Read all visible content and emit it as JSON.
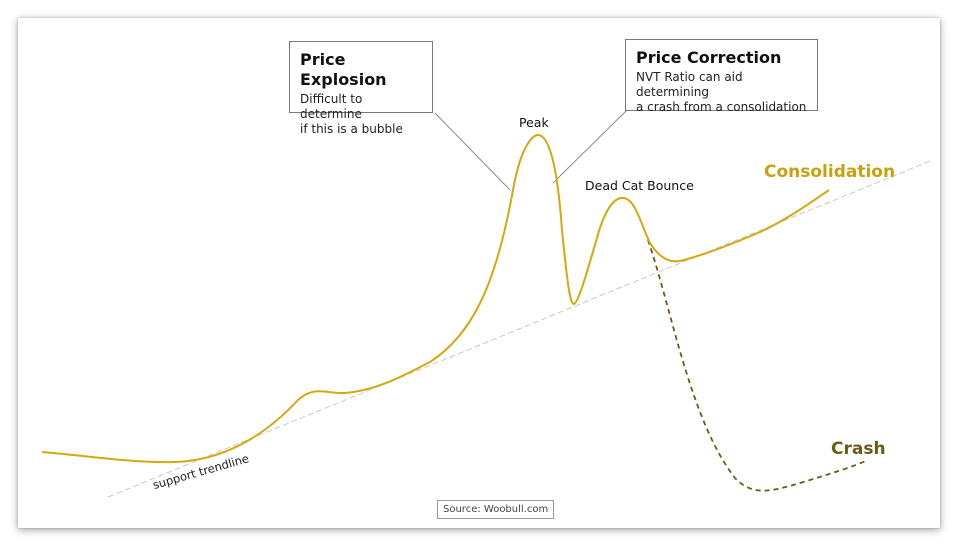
{
  "colors": {
    "price_line": "#d4a80e",
    "crash_line": "#6e5a17",
    "trendline": "#c8c8c8"
  },
  "explosion_box": {
    "title": "Price Explosion",
    "body_line1": "Difficult to determine",
    "body_line2": "if this is a bubble"
  },
  "correction_box": {
    "title": "Price Correction",
    "body_line1": "NVT Ratio can aid determining",
    "body_line2": "a crash from a consolidation"
  },
  "labels": {
    "peak": "Peak",
    "dead_cat": "Dead Cat Bounce",
    "consolidation": "Consolidation",
    "crash": "Crash",
    "trendline": "support trendline"
  },
  "source": "Source: Woobull.com"
}
